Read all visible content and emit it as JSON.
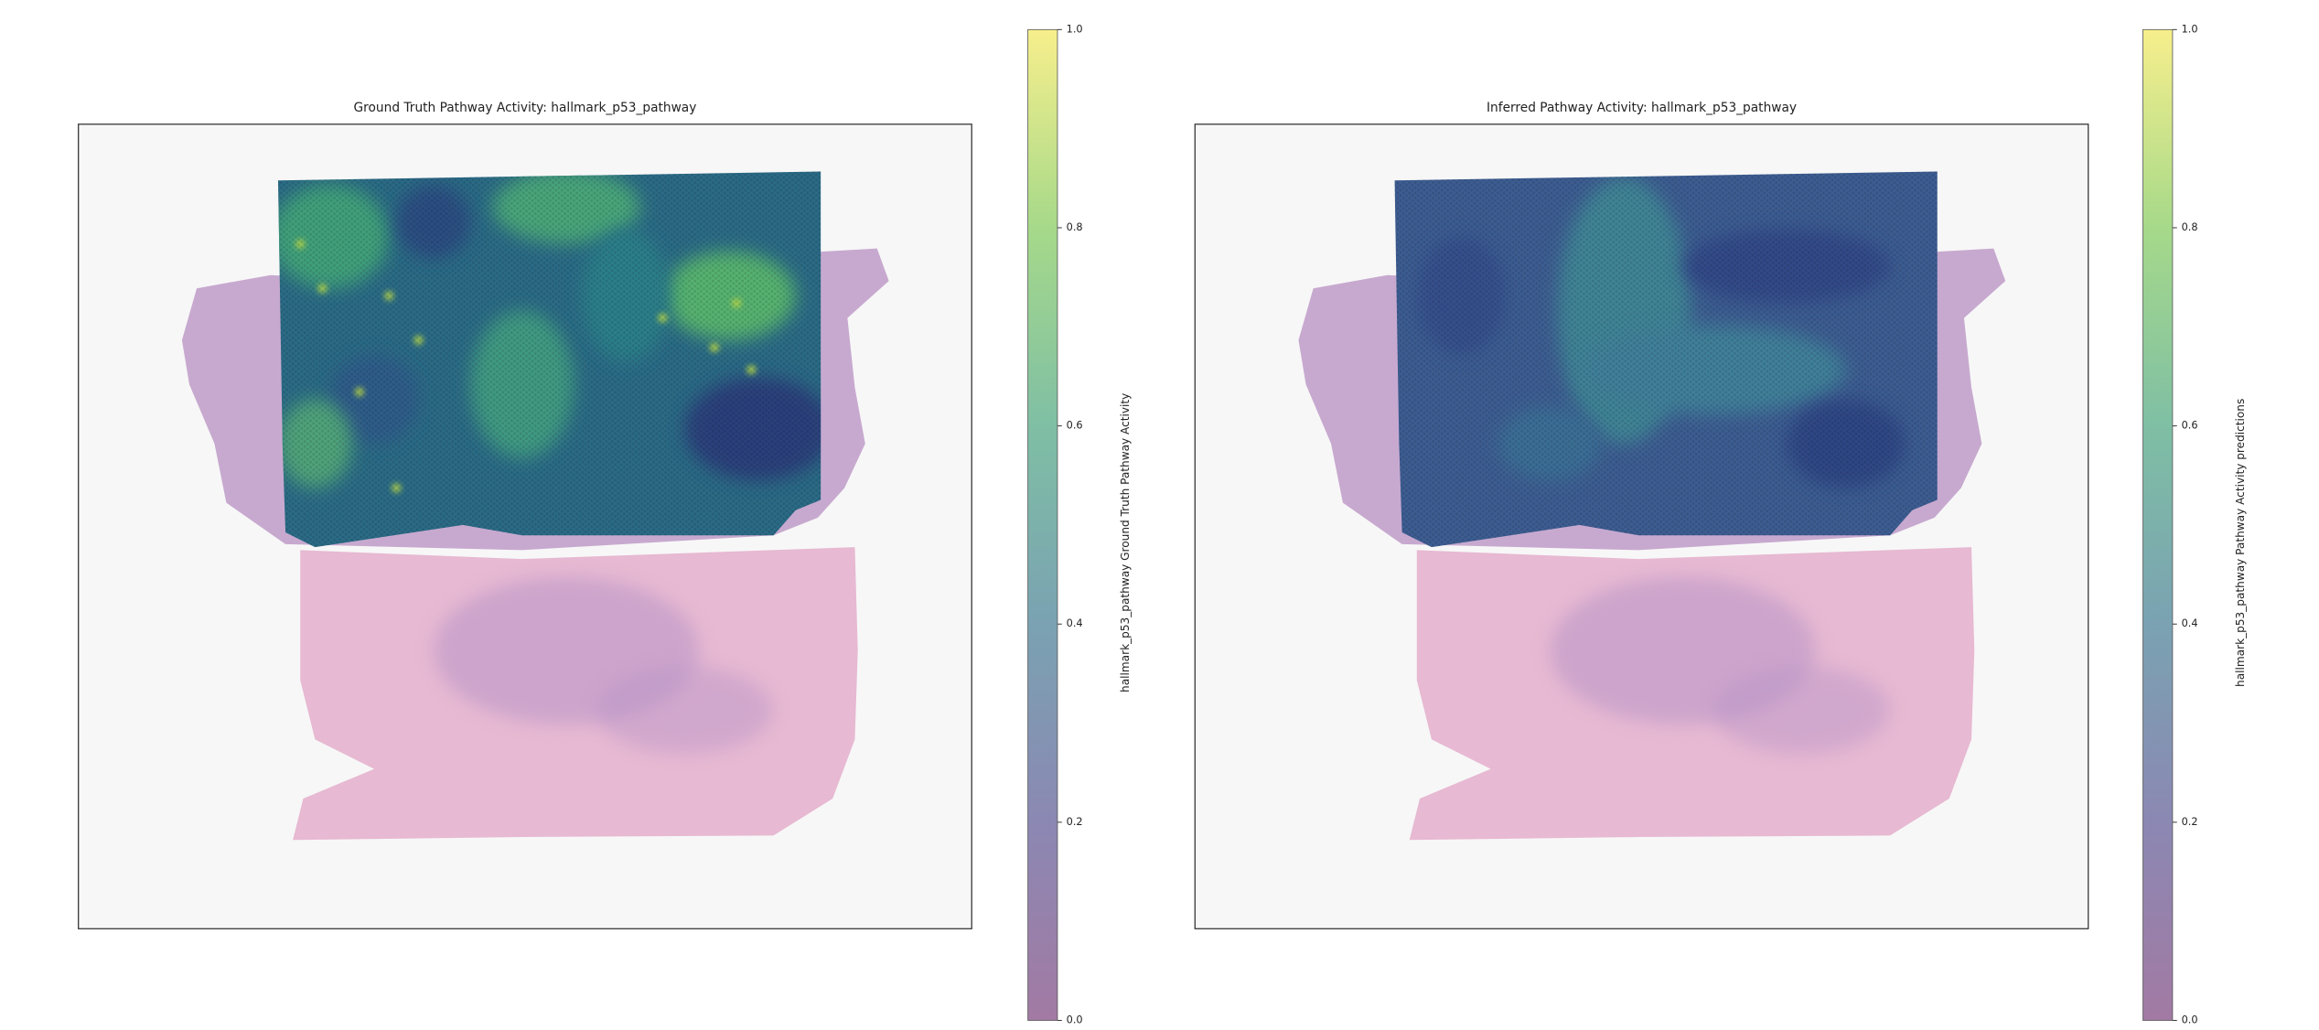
{
  "chart_data": [
    {
      "type": "heatmap",
      "title": "Ground Truth Pathway Activity: hallmark_p53_pathway",
      "colorbar_label": "hallmark_p53_pathway Ground Truth Pathway Activity",
      "colormap": "viridis",
      "clim": [
        0,
        1
      ],
      "cticks": [
        {
          "value": 0,
          "label": "0.0"
        },
        0.2,
        0.4,
        0.6,
        0.8,
        {
          "value": 1,
          "label": "1.0"
        }
      ]
    },
    {
      "type": "heatmap",
      "title": "Inferred Pathway Activity: hallmark_p53_pathway",
      "colorbar_label": "hallmark_p53_pathway Pathway Activity predictions",
      "colormap": "viridis",
      "clim": [
        0,
        1
      ],
      "cticks": [
        {
          "value": 0,
          "label": "0.0"
        },
        0.2,
        0.4,
        0.6,
        0.8,
        {
          "value": 1,
          "label": "1.0"
        }
      ]
    }
  ]
}
